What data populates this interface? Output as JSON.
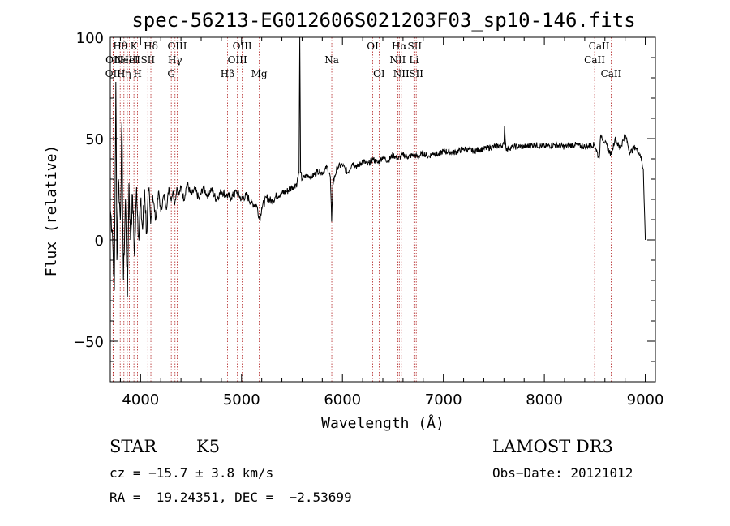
{
  "chart_data": {
    "type": "line",
    "title": "spec-56213-EG012606S021203F03_sp10-146.fits",
    "xlabel": "Wavelength (Å)",
    "ylabel": "Flux (relative)",
    "xlim": [
      3700,
      9100
    ],
    "ylim": [
      -70,
      100
    ],
    "xticks": [
      4000,
      5000,
      6000,
      7000,
      8000,
      9000
    ],
    "yticks": [
      -50,
      0,
      50,
      100
    ],
    "grid": false,
    "series": [
      {
        "line_color": "#000000",
        "points": [
          [
            3700,
            15
          ],
          [
            3720,
            5
          ],
          [
            3740,
            -25
          ],
          [
            3755,
            78
          ],
          [
            3765,
            -10
          ],
          [
            3780,
            30
          ],
          [
            3800,
            10
          ],
          [
            3815,
            58
          ],
          [
            3830,
            -20
          ],
          [
            3850,
            20
          ],
          [
            3870,
            -28
          ],
          [
            3885,
            28
          ],
          [
            3900,
            0
          ],
          [
            3920,
            22
          ],
          [
            3940,
            -8
          ],
          [
            3960,
            26
          ],
          [
            3980,
            2
          ],
          [
            4000,
            18
          ],
          [
            4020,
            5
          ],
          [
            4040,
            25
          ],
          [
            4060,
            3
          ],
          [
            4080,
            24
          ],
          [
            4100,
            8
          ],
          [
            4120,
            22
          ],
          [
            4150,
            10
          ],
          [
            4180,
            24
          ],
          [
            4200,
            14
          ],
          [
            4230,
            22
          ],
          [
            4260,
            16
          ],
          [
            4280,
            26
          ],
          [
            4300,
            20
          ],
          [
            4320,
            24
          ],
          [
            4340,
            18
          ],
          [
            4360,
            26
          ],
          [
            4380,
            22
          ],
          [
            4400,
            26
          ],
          [
            4430,
            20
          ],
          [
            4460,
            28
          ],
          [
            4500,
            22
          ],
          [
            4540,
            25
          ],
          [
            4580,
            20
          ],
          [
            4620,
            26
          ],
          [
            4660,
            22
          ],
          [
            4700,
            25
          ],
          [
            4750,
            20
          ],
          [
            4800,
            24
          ],
          [
            4850,
            22
          ],
          [
            4900,
            21
          ],
          [
            4950,
            24
          ],
          [
            5000,
            20
          ],
          [
            5050,
            22
          ],
          [
            5100,
            18
          ],
          [
            5150,
            17
          ],
          [
            5180,
            10
          ],
          [
            5200,
            16
          ],
          [
            5250,
            21
          ],
          [
            5300,
            19
          ],
          [
            5350,
            22
          ],
          [
            5400,
            23
          ],
          [
            5450,
            24
          ],
          [
            5500,
            26
          ],
          [
            5550,
            28
          ],
          [
            5570,
            33
          ],
          [
            5577,
            100
          ],
          [
            5585,
            33
          ],
          [
            5600,
            30
          ],
          [
            5650,
            32
          ],
          [
            5700,
            31
          ],
          [
            5750,
            34
          ],
          [
            5800,
            33
          ],
          [
            5850,
            36
          ],
          [
            5880,
            31
          ],
          [
            5893,
            9
          ],
          [
            5905,
            28
          ],
          [
            5950,
            36
          ],
          [
            6000,
            37
          ],
          [
            6050,
            33
          ],
          [
            6100,
            38
          ],
          [
            6150,
            36
          ],
          [
            6200,
            39
          ],
          [
            6250,
            37
          ],
          [
            6300,
            40
          ],
          [
            6350,
            38
          ],
          [
            6400,
            41
          ],
          [
            6450,
            39
          ],
          [
            6500,
            42
          ],
          [
            6550,
            40
          ],
          [
            6600,
            42
          ],
          [
            6650,
            41
          ],
          [
            6700,
            42
          ],
          [
            6750,
            41
          ],
          [
            6800,
            43
          ],
          [
            6850,
            41
          ],
          [
            6900,
            43
          ],
          [
            6950,
            42
          ],
          [
            7000,
            44
          ],
          [
            7100,
            43
          ],
          [
            7200,
            45
          ],
          [
            7300,
            44
          ],
          [
            7400,
            45
          ],
          [
            7500,
            46
          ],
          [
            7600,
            47
          ],
          [
            7605,
            56
          ],
          [
            7620,
            45
          ],
          [
            7700,
            46
          ],
          [
            7800,
            46
          ],
          [
            7900,
            47
          ],
          [
            8000,
            46
          ],
          [
            8100,
            47
          ],
          [
            8200,
            46
          ],
          [
            8300,
            47
          ],
          [
            8400,
            46
          ],
          [
            8500,
            47
          ],
          [
            8542,
            40
          ],
          [
            8560,
            52
          ],
          [
            8600,
            48
          ],
          [
            8662,
            42
          ],
          [
            8700,
            50
          ],
          [
            8750,
            45
          ],
          [
            8800,
            52
          ],
          [
            8850,
            43
          ],
          [
            8900,
            46
          ],
          [
            8950,
            42
          ],
          [
            8980,
            35
          ],
          [
            9000,
            0
          ]
        ]
      }
    ],
    "emission_lines": [
      {
        "wave": 3727,
        "label": "OII",
        "row": 2
      },
      {
        "wave": 3730,
        "label": "OII",
        "row": 1
      },
      {
        "wave": 3798,
        "label": "Hθ",
        "row": 0
      },
      {
        "wave": 3835,
        "label": "Hη",
        "row": 2
      },
      {
        "wave": 3869,
        "label": "NeIII",
        "row": 1
      },
      {
        "wave": 3889,
        "label": "HeI",
        "row": 1
      },
      {
        "wave": 3934,
        "label": "K",
        "row": 0
      },
      {
        "wave": 3970,
        "label": "H",
        "row": 2
      },
      {
        "wave": 4072,
        "label": "SII",
        "row": 1
      },
      {
        "wave": 4102,
        "label": "Hδ",
        "row": 0
      },
      {
        "wave": 4304,
        "label": "G",
        "row": 2
      },
      {
        "wave": 4341,
        "label": "Hγ",
        "row": 1
      },
      {
        "wave": 4363,
        "label": "OIII",
        "row": 0
      },
      {
        "wave": 4861,
        "label": "Hβ",
        "row": 2
      },
      {
        "wave": 4959,
        "label": "OIII",
        "row": 1
      },
      {
        "wave": 5007,
        "label": "OIII",
        "row": 0
      },
      {
        "wave": 5175,
        "label": "Mg",
        "row": 2
      },
      {
        "wave": 5894,
        "label": "Na",
        "row": 1
      },
      {
        "wave": 6300,
        "label": "OI",
        "row": 0
      },
      {
        "wave": 6363,
        "label": "OI",
        "row": 2
      },
      {
        "wave": 6548,
        "label": "NII",
        "row": 1
      },
      {
        "wave": 6563,
        "label": "Hα",
        "row": 0
      },
      {
        "wave": 6583,
        "label": "NII",
        "row": 2
      },
      {
        "wave": 6708,
        "label": "Li",
        "row": 1
      },
      {
        "wave": 6716,
        "label": "SII",
        "row": 0
      },
      {
        "wave": 6731,
        "label": "SII",
        "row": 2
      },
      {
        "wave": 8498,
        "label": "CaII",
        "row": 1
      },
      {
        "wave": 8542,
        "label": "CaII",
        "row": 0
      },
      {
        "wave": 8662,
        "label": "CaII",
        "row": 2
      }
    ],
    "line_marker_color": "#b22222"
  },
  "info": {
    "class_label": "STAR",
    "subclass": "K5",
    "survey": "LAMOST DR3",
    "redshift": "cz = −15.7 ± 3.8 km/s",
    "obs_date": "Obs−Date: 20121012",
    "coords": "RA =  19.24351, DEC =  −2.53699"
  }
}
